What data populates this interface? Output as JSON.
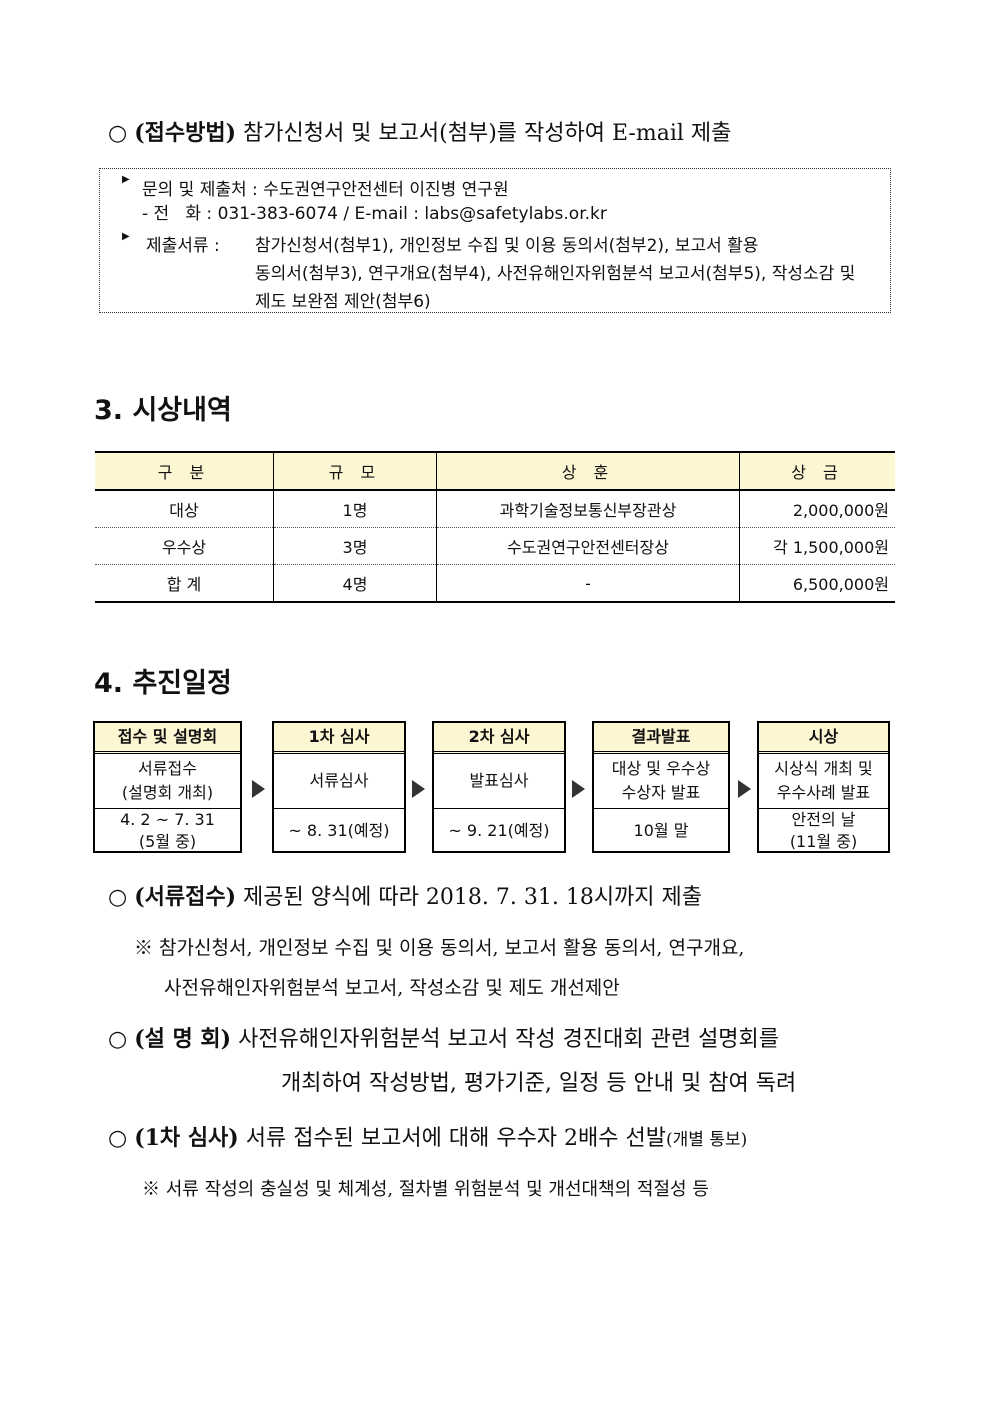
{
  "submission": {
    "bullet": "○",
    "label": "(접수방법)",
    "text": "참가신청서 및 보고서(첨부)를 작성하여 E-mail 제출"
  },
  "contact_box": {
    "line1": "문의 및 제출처 : 수도권연구안전센터 이진병 연구원",
    "line2": "- 전   화 : 031-383-6074 / E-mail : labs@safetylabs.or.kr",
    "docs_label": "제출서류 :",
    "docs_lines": [
      "참가신청서(첨부1), 개인정보 수집 및 이용 동의서(첨부2), 보고서 활용",
      "동의서(첨부3), 연구개요(첨부4), 사전유해인자위험분석 보고서(첨부5), 작성소감 및",
      "제도 보완점 제안(첨부6)"
    ]
  },
  "section3": {
    "title": "3. 시상내역",
    "headers": [
      "구 분",
      "규 모",
      "상 훈",
      "상 금"
    ],
    "rows": [
      [
        "대상",
        "1명",
        "과학기술정보통신부장관상",
        "2,000,000원"
      ],
      [
        "우수상",
        "3명",
        "수도권연구안전센터장상",
        "각 1,500,000원"
      ],
      [
        "합 계",
        "4명",
        "-",
        "6,500,000원"
      ]
    ]
  },
  "section4": {
    "title": "4. 추진일정",
    "steps": [
      {
        "header": "접수 및 설명회",
        "middle": [
          "서류접수",
          "(설명회 개최)"
        ],
        "bottom": [
          "4. 2 ~ 7. 31",
          "(5월 중)"
        ]
      },
      {
        "header": "1차 심사",
        "middle": [
          "서류심사"
        ],
        "bottom": [
          "~ 8. 31(예정)"
        ]
      },
      {
        "header": "2차 심사",
        "middle": [
          "발표심사"
        ],
        "bottom": [
          "~ 9. 21(예정)"
        ]
      },
      {
        "header": "결과발표",
        "middle": [
          "대상 및 우수상",
          "수상자 발표"
        ],
        "bottom": [
          "10월 말"
        ]
      },
      {
        "header": "시상",
        "middle": [
          "시상식 개최 및",
          "우수사례 발표"
        ],
        "bottom": [
          "안전의 날",
          "(11월 중)"
        ]
      }
    ],
    "items": [
      {
        "label": "(서류접수)",
        "text": "제공된 양식에 따라 2018. 7. 31. 18시까지 제출"
      },
      {
        "note": [
          "※ 참가신청서, 개인정보 수집 및 이용 동의서, 보고서 활용 동의서, 연구개요,",
          "사전유해인자위험분석 보고서, 작성소감 및 제도 개선제안"
        ]
      },
      {
        "label": "(설 명 회)",
        "text": "사전유해인자위험분석 보고서 작성 경진대회 관련 설명회를",
        "text2": "개최하여 작성방법, 평가기준, 일정 등 안내 및 참여 독려"
      },
      {
        "label": "(1차 심사)",
        "text": "서류 접수된 보고서에 대해 우수자 2배수 선발",
        "small": "(개별 통보)"
      },
      {
        "note": [
          "※ 서류 작성의 충실성 및 체계성, 절차별 위험분석 및 개선대책의 적절성 등"
        ]
      }
    ]
  }
}
